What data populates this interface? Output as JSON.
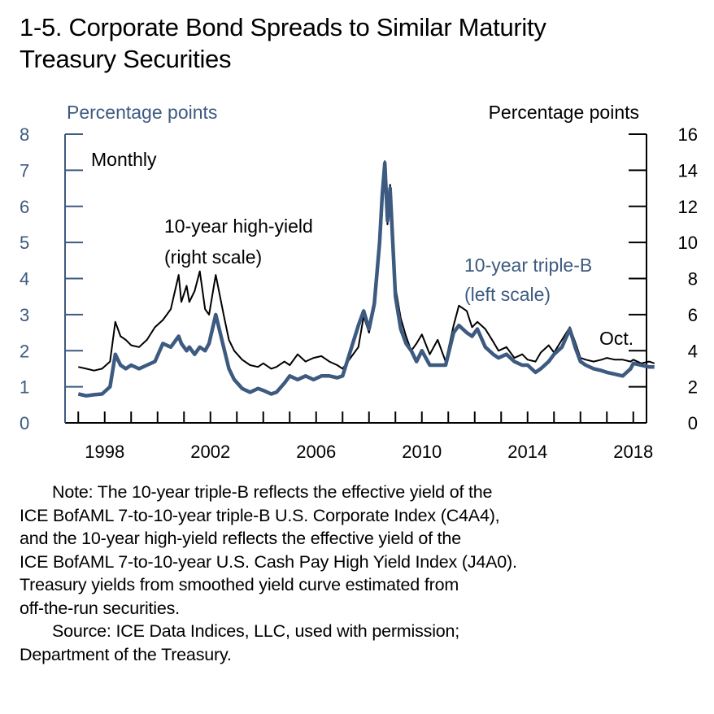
{
  "title": {
    "line1": "1-5. Corporate Bond Spreads to Similar Maturity",
    "line2": "Treasury Securities"
  },
  "colors": {
    "left_series": "#3d5a80",
    "right_series": "#000000",
    "left_axis_text": "#3d5a80"
  },
  "chart_data": {
    "type": "line",
    "frequency_label": "Monthly",
    "end_label": "Oct.",
    "left_axis": {
      "label": "Percentage points",
      "ylim": [
        0,
        8
      ],
      "ticks": [
        "0",
        "1",
        "2",
        "3",
        "4",
        "5",
        "6",
        "7",
        "8"
      ]
    },
    "right_axis": {
      "label": "Percentage points",
      "ylim": [
        0,
        16
      ],
      "ticks": [
        "0",
        "2",
        "4",
        "6",
        "8",
        "10",
        "12",
        "14",
        "16"
      ]
    },
    "x_axis": {
      "xlim": [
        1996.5,
        2018.5
      ],
      "tick_labels": [
        "1998",
        "2002",
        "2006",
        "2010",
        "2014",
        "2018"
      ],
      "tick_values": [
        1998,
        2002,
        2006,
        2010,
        2014,
        2018
      ]
    },
    "series": [
      {
        "name": "10-year high-yield",
        "annotation": [
          "10-year high-yield",
          "(right scale)"
        ],
        "axis": "right",
        "x": [
          1997.0,
          1997.3,
          1997.6,
          1997.9,
          1998.2,
          1998.4,
          1998.6,
          1998.8,
          1999.0,
          1999.3,
          1999.6,
          1999.9,
          2000.2,
          2000.5,
          2000.8,
          2000.9,
          2001.1,
          2001.2,
          2001.4,
          2001.6,
          2001.8,
          2001.95,
          2002.2,
          2002.5,
          2002.7,
          2002.9,
          2003.2,
          2003.5,
          2003.8,
          2004.0,
          2004.3,
          2004.5,
          2004.8,
          2005.0,
          2005.3,
          2005.6,
          2005.9,
          2006.2,
          2006.5,
          2006.8,
          2007.0,
          2007.3,
          2007.6,
          2007.8,
          2008.0,
          2008.2,
          2008.4,
          2008.5,
          2008.6,
          2008.7,
          2008.8,
          2008.9,
          2009.0,
          2009.2,
          2009.4,
          2009.6,
          2009.8,
          2010.0,
          2010.3,
          2010.6,
          2010.9,
          2011.2,
          2011.4,
          2011.7,
          2011.9,
          2012.1,
          2012.4,
          2012.7,
          2012.9,
          2013.2,
          2013.5,
          2013.8,
          2014.0,
          2014.3,
          2014.5,
          2014.8,
          2015.0,
          2015.3,
          2015.6,
          2015.8,
          2016.0,
          2016.2,
          2016.5,
          2016.8,
          2017.0,
          2017.3,
          2017.6,
          2017.9,
          2018.0,
          2018.3,
          2018.6,
          2018.8
        ],
        "values": [
          3.1,
          3.0,
          2.9,
          3.0,
          3.4,
          5.6,
          4.8,
          4.6,
          4.3,
          4.2,
          4.6,
          5.3,
          5.7,
          6.3,
          8.2,
          6.7,
          7.6,
          6.7,
          7.3,
          8.4,
          6.3,
          6.0,
          8.2,
          6.0,
          4.6,
          4.0,
          3.5,
          3.2,
          3.1,
          3.3,
          3.0,
          3.1,
          3.4,
          3.2,
          3.8,
          3.4,
          3.6,
          3.7,
          3.4,
          3.2,
          3.0,
          3.6,
          4.2,
          5.9,
          5.0,
          6.5,
          10.0,
          12.6,
          14.5,
          11.0,
          13.2,
          10.5,
          7.5,
          5.8,
          4.8,
          4.0,
          4.4,
          4.9,
          3.8,
          4.6,
          3.4,
          5.4,
          6.5,
          6.2,
          5.3,
          5.6,
          5.2,
          4.5,
          4.0,
          4.2,
          3.6,
          3.8,
          3.5,
          3.4,
          3.9,
          4.3,
          3.9,
          4.6,
          5.3,
          4.5,
          3.6,
          3.5,
          3.4,
          3.5,
          3.6,
          3.5,
          3.5,
          3.4,
          3.5,
          3.3,
          3.4,
          3.3
        ]
      },
      {
        "name": "10-year triple-B",
        "annotation": [
          "10-year triple-B",
          "(left scale)"
        ],
        "axis": "left",
        "x": [
          1997.0,
          1997.3,
          1997.6,
          1997.9,
          1998.2,
          1998.4,
          1998.6,
          1998.8,
          1999.0,
          1999.3,
          1999.6,
          1999.9,
          2000.2,
          2000.5,
          2000.8,
          2000.9,
          2001.1,
          2001.2,
          2001.4,
          2001.6,
          2001.8,
          2001.95,
          2002.2,
          2002.5,
          2002.7,
          2002.9,
          2003.2,
          2003.5,
          2003.8,
          2004.0,
          2004.3,
          2004.5,
          2004.8,
          2005.0,
          2005.3,
          2005.6,
          2005.9,
          2006.2,
          2006.5,
          2006.8,
          2007.0,
          2007.3,
          2007.6,
          2007.8,
          2008.0,
          2008.2,
          2008.4,
          2008.5,
          2008.6,
          2008.7,
          2008.8,
          2008.9,
          2009.0,
          2009.2,
          2009.4,
          2009.6,
          2009.8,
          2010.0,
          2010.3,
          2010.6,
          2010.9,
          2011.2,
          2011.4,
          2011.7,
          2011.9,
          2012.1,
          2012.4,
          2012.7,
          2012.9,
          2013.2,
          2013.5,
          2013.8,
          2014.0,
          2014.3,
          2014.5,
          2014.8,
          2015.0,
          2015.3,
          2015.6,
          2015.8,
          2016.0,
          2016.2,
          2016.5,
          2016.8,
          2017.0,
          2017.3,
          2017.6,
          2017.9,
          2018.0,
          2018.3,
          2018.6,
          2018.8
        ],
        "values": [
          0.8,
          0.75,
          0.78,
          0.8,
          1.0,
          1.9,
          1.6,
          1.5,
          1.6,
          1.5,
          1.6,
          1.7,
          2.2,
          2.1,
          2.4,
          2.2,
          2.0,
          2.1,
          1.9,
          2.1,
          2.0,
          2.2,
          3.0,
          2.1,
          1.5,
          1.2,
          0.95,
          0.85,
          0.95,
          0.9,
          0.8,
          0.85,
          1.1,
          1.3,
          1.2,
          1.3,
          1.2,
          1.3,
          1.3,
          1.25,
          1.3,
          2.0,
          2.7,
          3.1,
          2.6,
          3.3,
          5.0,
          6.3,
          7.2,
          5.6,
          6.5,
          5.0,
          3.5,
          2.6,
          2.2,
          2.0,
          1.7,
          2.0,
          1.6,
          1.6,
          1.6,
          2.5,
          2.7,
          2.5,
          2.4,
          2.6,
          2.1,
          1.9,
          1.8,
          1.9,
          1.7,
          1.6,
          1.6,
          1.4,
          1.5,
          1.7,
          1.9,
          2.1,
          2.6,
          2.1,
          1.7,
          1.6,
          1.5,
          1.45,
          1.4,
          1.35,
          1.3,
          1.5,
          1.65,
          1.6,
          1.55,
          1.55
        ]
      }
    ]
  },
  "notes": [
    "Note: The 10-year triple-B reflects the effective yield of the",
    "ICE BofAML 7-to-10-year triple-B U.S. Corporate Index (C4A4),",
    "and the 10-year high-yield reflects the effective yield of the",
    "ICE BofAML 7-to-10-year U.S. Cash Pay High Yield Index (J4A0).",
    "Treasury yields from smoothed yield curve estimated from",
    "off-the-run securities.",
    "Source: ICE Data Indices, LLC, used with permission;",
    "Department of the Treasury."
  ]
}
